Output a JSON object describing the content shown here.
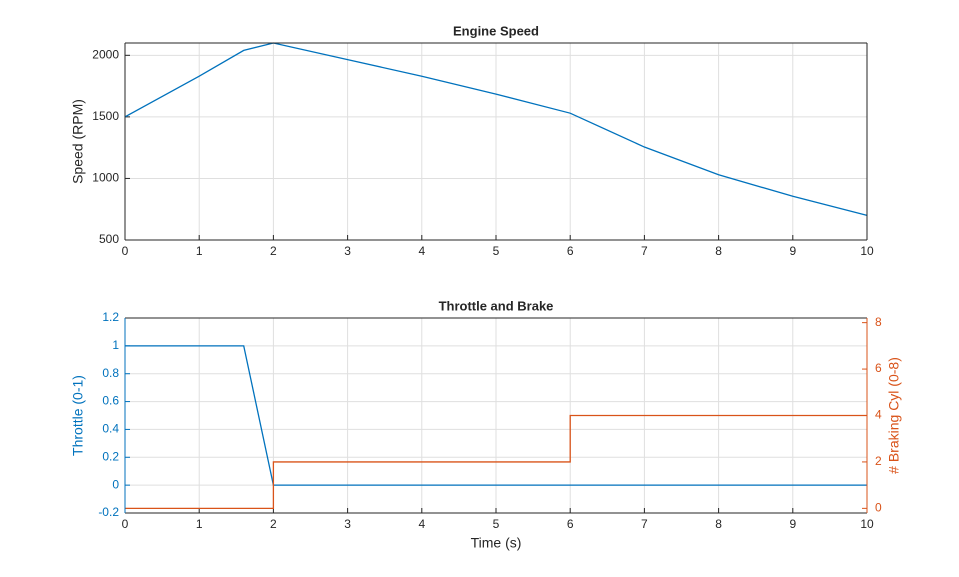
{
  "chart_data": [
    {
      "type": "line",
      "title": "Engine Speed",
      "ylabel": "Speed (RPM)",
      "grid": true,
      "xlim": [
        0,
        10
      ],
      "xticks": [
        0,
        1,
        2,
        3,
        4,
        5,
        6,
        7,
        8,
        9,
        10
      ],
      "ylim": [
        500,
        2100
      ],
      "yticks": [
        500,
        1000,
        1500,
        2000
      ],
      "series": [
        {
          "color": "#0072bd",
          "x": [
            0,
            1,
            1.6,
            2,
            3,
            4,
            5,
            6,
            7,
            8,
            9,
            10
          ],
          "values": [
            1500,
            1830,
            2040,
            2100,
            1965,
            1830,
            1685,
            1530,
            1255,
            1030,
            855,
            700
          ]
        }
      ]
    },
    {
      "type": "line",
      "title": "Throttle and Brake",
      "xlabel": "Time (s)",
      "ylabel": "Throttle (0-1)",
      "y2label": "# Braking Cyl (0-8)",
      "grid": true,
      "xlim": [
        0,
        10
      ],
      "xticks": [
        0,
        1,
        2,
        3,
        4,
        5,
        6,
        7,
        8,
        9,
        10
      ],
      "ylim": [
        -0.2,
        1.2
      ],
      "yticks": [
        -0.2,
        0,
        0.2,
        0.4,
        0.6,
        0.8,
        1,
        1.2
      ],
      "y2lim": [
        -0.2,
        8.2
      ],
      "y2ticks": [
        0,
        2,
        4,
        6,
        8
      ],
      "series": [
        {
          "color": "#0072bd",
          "x": [
            0,
            1.6,
            2,
            10
          ],
          "values": [
            1,
            1,
            0,
            0
          ]
        },
        {
          "color": "#d95319",
          "axis": "y2",
          "x": [
            0,
            2,
            2,
            6,
            6,
            10
          ],
          "values": [
            0,
            0,
            2,
            2,
            4,
            4
          ]
        }
      ]
    }
  ]
}
